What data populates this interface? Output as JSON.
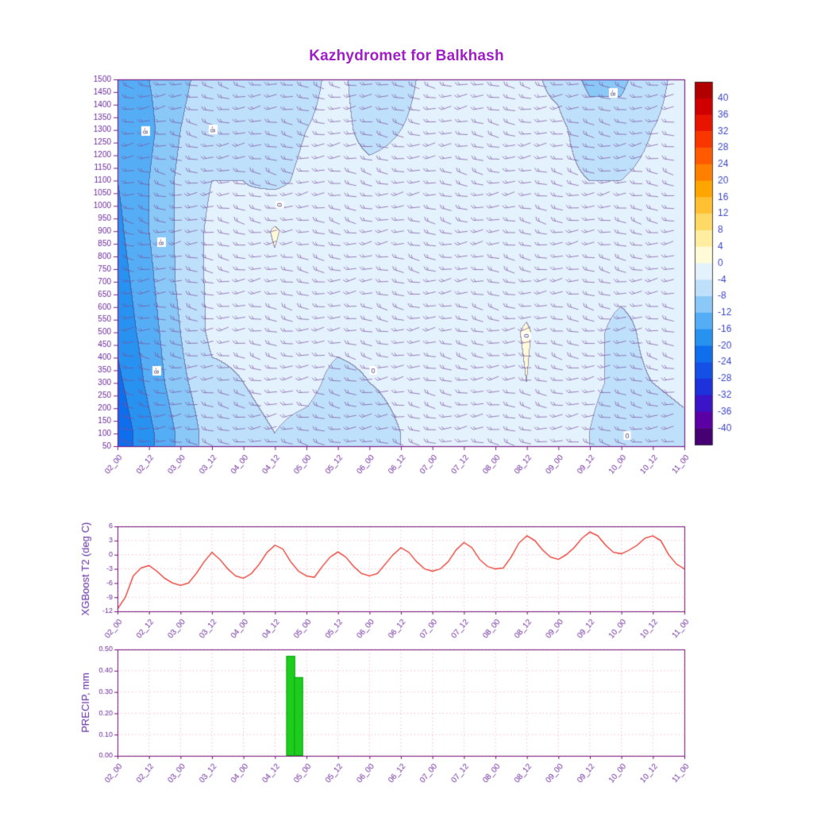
{
  "title": {
    "text": "Kazhydromet for Balkhash",
    "color": "#a020c8"
  },
  "time_labels": [
    "02_00",
    "02_12",
    "03_00",
    "03_12",
    "04_00",
    "04_12",
    "05_00",
    "05_12",
    "06_00",
    "06_12",
    "07_00",
    "07_12",
    "08_00",
    "08_12",
    "09_00",
    "09_12",
    "10_00",
    "10_12",
    "11_00"
  ],
  "styles": {
    "frame": "#7a2080",
    "tick_label": "#6a2a9a",
    "axis_title": "#5f2da0",
    "grid": "#f2aebe",
    "colorbar_label": "#3c46c8",
    "contour_label": "#5a4a7a",
    "background": "#ffffff"
  },
  "chart_data": [
    {
      "type": "heatmap",
      "name": "temperature-time-height-section",
      "level_ticks": [
        1500,
        1450,
        1400,
        1350,
        1300,
        1250,
        1200,
        1150,
        1100,
        1050,
        1000,
        950,
        900,
        850,
        800,
        750,
        700,
        650,
        600,
        550,
        500,
        450,
        400,
        350,
        300,
        250,
        200,
        150,
        100,
        50
      ],
      "grid_levels": [
        1500,
        1300,
        1100,
        900,
        700,
        500,
        300,
        100
      ],
      "grid_values": [
        [
          -13,
          -12,
          -9,
          -6,
          -5,
          -6,
          -5,
          -3,
          -6,
          -5,
          -3,
          -3,
          -3,
          -3,
          -5,
          -9,
          -9,
          -5,
          -3
        ],
        [
          -15,
          -13,
          -8,
          -5,
          -5,
          -6,
          -4,
          -3,
          -5,
          -4,
          -3,
          -3,
          -3,
          -3,
          -3,
          -6,
          -6,
          -4,
          -3
        ],
        [
          -16,
          -12,
          -7,
          -4,
          -4,
          -5,
          -3,
          -3,
          -3,
          -3,
          -3,
          -3,
          -3,
          -3,
          -3,
          -4,
          -4,
          -3,
          -3
        ],
        [
          -17,
          -12,
          -7,
          -3,
          -3,
          0.5,
          -3,
          -3,
          -3,
          -3,
          -3,
          -3,
          -3,
          -2,
          -3,
          -3,
          -3,
          -3,
          -3
        ],
        [
          -18,
          -13,
          -7,
          -3,
          -3,
          -1,
          -3,
          -3,
          -3,
          -3,
          -3,
          -3,
          -2,
          -2,
          -3,
          -3,
          -3,
          -3,
          -3
        ],
        [
          -19,
          -14,
          -8,
          -3,
          -3,
          -3,
          -3,
          -3,
          -3,
          -3,
          -3,
          -3,
          -2,
          0.5,
          -3,
          -3,
          -5,
          -3,
          -3
        ],
        [
          -21,
          -15,
          -9,
          -5,
          -4,
          -3,
          -3,
          -5,
          -4,
          -3,
          -3,
          -3,
          -3,
          0,
          -3,
          -3,
          -5,
          -4,
          -3
        ],
        [
          -23,
          -17,
          -11,
          -6,
          -5,
          -4,
          -5,
          -6,
          -6,
          -4,
          -4,
          -4,
          -4,
          -3,
          -4,
          -4,
          -7,
          -6,
          -5
        ]
      ],
      "colorbar": {
        "ticks": [
          40,
          36,
          32,
          28,
          24,
          20,
          16,
          12,
          8,
          4,
          0,
          -4,
          -8,
          -12,
          -16,
          -20,
          -24,
          -28,
          -32,
          -36,
          -40
        ],
        "colors_high_to_low": [
          "#b00000",
          "#d00000",
          "#e81400",
          "#f93600",
          "#ff5a00",
          "#ff7f00",
          "#ffa500",
          "#ffc133",
          "#ffd966",
          "#ffeea0",
          "#fffbd8",
          "#e4f2fd",
          "#bfe0fb",
          "#8ac8f8",
          "#55aef5",
          "#2892f0",
          "#0f6eec",
          "#1450e6",
          "#1e32dc",
          "#3b14c8",
          "#5b00a5",
          "#460073"
        ]
      },
      "contour_labels": [
        {
          "text": "-8",
          "x": 183,
          "y": 165,
          "rot": 90
        },
        {
          "text": "-8",
          "x": 268,
          "y": 163,
          "rot": 90
        },
        {
          "text": "-8",
          "x": 203,
          "y": 305,
          "rot": 90
        },
        {
          "text": "0",
          "x": 352,
          "y": 258,
          "rot": 90
        },
        {
          "text": "-8",
          "x": 197,
          "y": 467,
          "rot": 90
        },
        {
          "text": "0",
          "x": 470,
          "y": 467,
          "rot": 0
        },
        {
          "text": "0",
          "x": 663,
          "y": 423,
          "rot": 90
        },
        {
          "text": "-8",
          "x": 772,
          "y": 117,
          "rot": 90
        },
        {
          "text": "0",
          "x": 790,
          "y": 549,
          "rot": 0
        }
      ],
      "wind_barbs": {
        "color": "#7b4f9e"
      }
    },
    {
      "type": "line",
      "title": "XGBoost T2 (deg C)",
      "color": "#e8342a",
      "x_start_label": "02_00",
      "x_step_hours": 3,
      "values": [
        -11.5,
        -9,
        -4.5,
        -2.8,
        -2.3,
        -3.5,
        -5,
        -6,
        -6.5,
        -6,
        -4,
        -1.5,
        0.5,
        -1,
        -3,
        -4.5,
        -5,
        -4,
        -2,
        0.5,
        2,
        1.2,
        -1.5,
        -3.5,
        -4.5,
        -4.8,
        -2.5,
        -0.5,
        0.6,
        -0.5,
        -2.5,
        -4,
        -4.5,
        -4,
        -2,
        0,
        1.5,
        0.5,
        -1.5,
        -3,
        -3.5,
        -3,
        -1.5,
        1,
        2.6,
        1.5,
        -1,
        -2.5,
        -3,
        -2.8,
        -0.5,
        2.5,
        4,
        3,
        1,
        -0.5,
        -1,
        0,
        1.5,
        3.5,
        4.8,
        4,
        2,
        0.5,
        0.2,
        1,
        2,
        3.5,
        4,
        3,
        0,
        -2,
        -3
      ],
      "ylim": [
        -12,
        6
      ],
      "yticks": [
        -12,
        -9,
        -6,
        -3,
        0,
        3,
        6
      ]
    },
    {
      "type": "bar",
      "title": "PRECIP, mm",
      "color": "#1ecc1e",
      "bar_edge": "#089a08",
      "ylim": [
        0,
        0.5
      ],
      "ytick_labels": [
        "0.00",
        "0.10",
        "0.20",
        "0.30",
        "0.40",
        "0.50"
      ],
      "bars": [
        {
          "hour_offset": 66,
          "value": 0.47
        },
        {
          "hour_offset": 69,
          "value": 0.37
        }
      ],
      "bar_width_hours": 2.2
    }
  ]
}
